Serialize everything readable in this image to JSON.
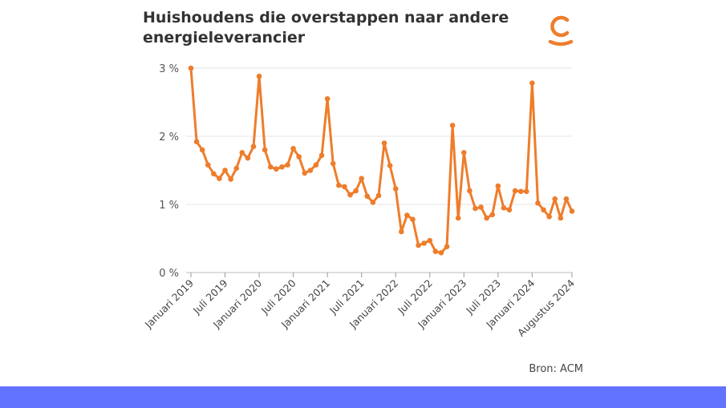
{
  "title": "Huishoudens die overstappen naar andere energieleverancier",
  "source": "Bron: ACM",
  "colors": {
    "line": "#ee7d2b",
    "accent": "#ee7d2b",
    "footer": "#6173ff",
    "grid": "#e6e6e6"
  },
  "logo": {
    "icon": "brand-c-logo-icon"
  },
  "chart_data": {
    "type": "line",
    "title": "Huishoudens die overstappen naar andere energieleverancier",
    "xlabel": "",
    "ylabel": "",
    "ylim": [
      0,
      3
    ],
    "y_ticks": [
      "0 %",
      "1 %",
      "2 %",
      "3 %"
    ],
    "x_tick_labels": [
      "Januari 2019",
      "Juli 2019",
      "Januari 2020",
      "Juli 2020",
      "Januari 2021",
      "Juli 2021",
      "Januari 2022",
      "Juli 2022",
      "Januari 2023",
      "Juli 2023",
      "Januari 2024",
      "Augustus 2024"
    ],
    "grid": true,
    "legend": "none",
    "series": [
      {
        "values": [
          3.0,
          1.92,
          1.8,
          1.58,
          1.45,
          1.38,
          1.5,
          1.37,
          1.53,
          1.76,
          1.68,
          1.85,
          2.88,
          1.8,
          1.55,
          1.52,
          1.55,
          1.58,
          1.82,
          1.7,
          1.46,
          1.5,
          1.58,
          1.72,
          2.55,
          1.6,
          1.28,
          1.26,
          1.14,
          1.2,
          1.38,
          1.12,
          1.03,
          1.13,
          1.9,
          1.57,
          1.23,
          0.6,
          0.84,
          0.78,
          0.4,
          0.43,
          0.47,
          0.31,
          0.29,
          0.38,
          2.16,
          0.8,
          1.76,
          1.2,
          0.94,
          0.96,
          0.8,
          0.85,
          1.27,
          0.95,
          0.92,
          1.2,
          1.19,
          1.19,
          2.78,
          1.02,
          0.92,
          0.82,
          1.08,
          0.8,
          1.08,
          0.9
        ]
      }
    ]
  }
}
